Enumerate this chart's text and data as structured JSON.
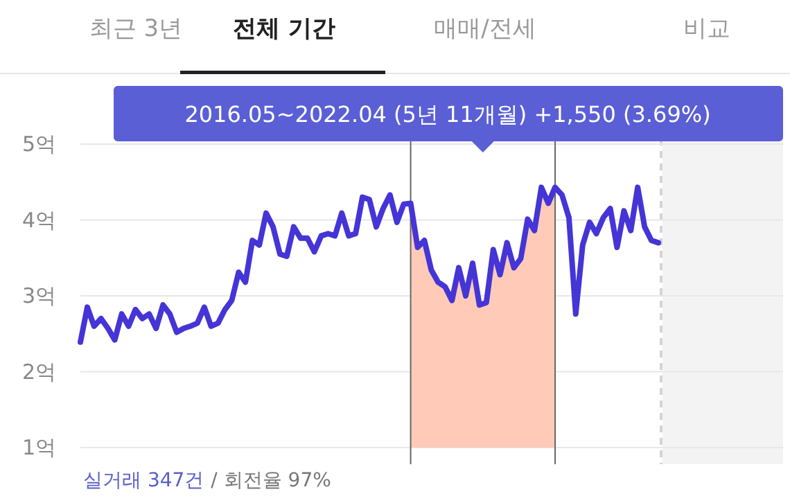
{
  "chart_data": {
    "type": "line",
    "categories": [
      null,
      null,
      null,
      null,
      null,
      null,
      null,
      null,
      null,
      null,
      null,
      null,
      null,
      null,
      null,
      null,
      null,
      null,
      null,
      null,
      null,
      null,
      null,
      null,
      null,
      null,
      null,
      null,
      null,
      null,
      null,
      null,
      null,
      null,
      null,
      null,
      null,
      null,
      null,
      null,
      null,
      null,
      null,
      null,
      null,
      null,
      null,
      null,
      null,
      null,
      null,
      null,
      null,
      null,
      null,
      null,
      null,
      null,
      null,
      null,
      null,
      null,
      null,
      null,
      null,
      null,
      null,
      null,
      null,
      null,
      null,
      null,
      null,
      null,
      null,
      null,
      null,
      null,
      null,
      null,
      null,
      null,
      null,
      null,
      null
    ],
    "series": [
      {
        "type": "area",
        "color": "#ffcbb8",
        "values": [
          null,
          null,
          null,
          null,
          null,
          null,
          null,
          null,
          null,
          null,
          null,
          null,
          null,
          null,
          null,
          null,
          null,
          null,
          null,
          null,
          null,
          null,
          null,
          null,
          null,
          null,
          null,
          null,
          null,
          null,
          null,
          null,
          null,
          null,
          null,
          null,
          null,
          null,
          null,
          null,
          null,
          null,
          null,
          null,
          null,
          null,
          null,
          null,
          4.22,
          3.64,
          3.73,
          3.34,
          3.18,
          3.12,
          2.94,
          3.37,
          3.0,
          3.43,
          2.88,
          2.91,
          3.61,
          3.28,
          3.7,
          3.37,
          3.49,
          4.01,
          3.86,
          4.43,
          4.22,
          4.43,
          null,
          null,
          null,
          null,
          null,
          null,
          null,
          null,
          null,
          null,
          null,
          null,
          null,
          null,
          null
        ]
      },
      {
        "type": "line",
        "color": "#4535d6",
        "values": [
          2.39,
          2.85,
          2.6,
          2.7,
          2.57,
          2.42,
          2.76,
          2.6,
          2.82,
          2.7,
          2.76,
          2.57,
          2.88,
          2.76,
          2.52,
          2.57,
          2.6,
          2.64,
          2.85,
          2.6,
          2.64,
          2.82,
          2.94,
          3.31,
          3.18,
          3.73,
          3.67,
          4.09,
          3.91,
          3.55,
          3.52,
          3.91,
          3.76,
          3.76,
          3.58,
          3.79,
          3.82,
          3.79,
          4.09,
          3.79,
          3.82,
          4.3,
          4.27,
          3.91,
          4.15,
          4.33,
          3.97,
          4.21,
          4.22,
          3.64,
          3.73,
          3.34,
          3.18,
          3.12,
          2.94,
          3.37,
          3.0,
          3.43,
          2.88,
          2.91,
          3.61,
          3.28,
          3.7,
          3.37,
          3.49,
          4.01,
          3.86,
          4.43,
          4.22,
          4.43,
          4.33,
          4.03,
          2.76,
          3.67,
          3.97,
          3.82,
          4.03,
          4.15,
          3.64,
          4.12,
          3.86,
          4.43,
          3.91,
          3.73,
          3.7
        ]
      }
    ],
    "ylim": [
      1,
      5
    ],
    "yticks": [
      {
        "value": 1,
        "label": "1억"
      },
      {
        "value": 2,
        "label": "2억"
      },
      {
        "value": 3,
        "label": "3억"
      },
      {
        "value": 4,
        "label": "4억"
      },
      {
        "value": 5,
        "label": "5억"
      }
    ],
    "grid": "y",
    "annotations": [
      "최근 3년",
      "전체 기간",
      "매매/전세",
      "비교",
      "2016.05~2022.04 (5년 11개월)  +1,550 (3.69%)",
      "실거래 347건",
      "/ 회전율 97%"
    ]
  }
}
